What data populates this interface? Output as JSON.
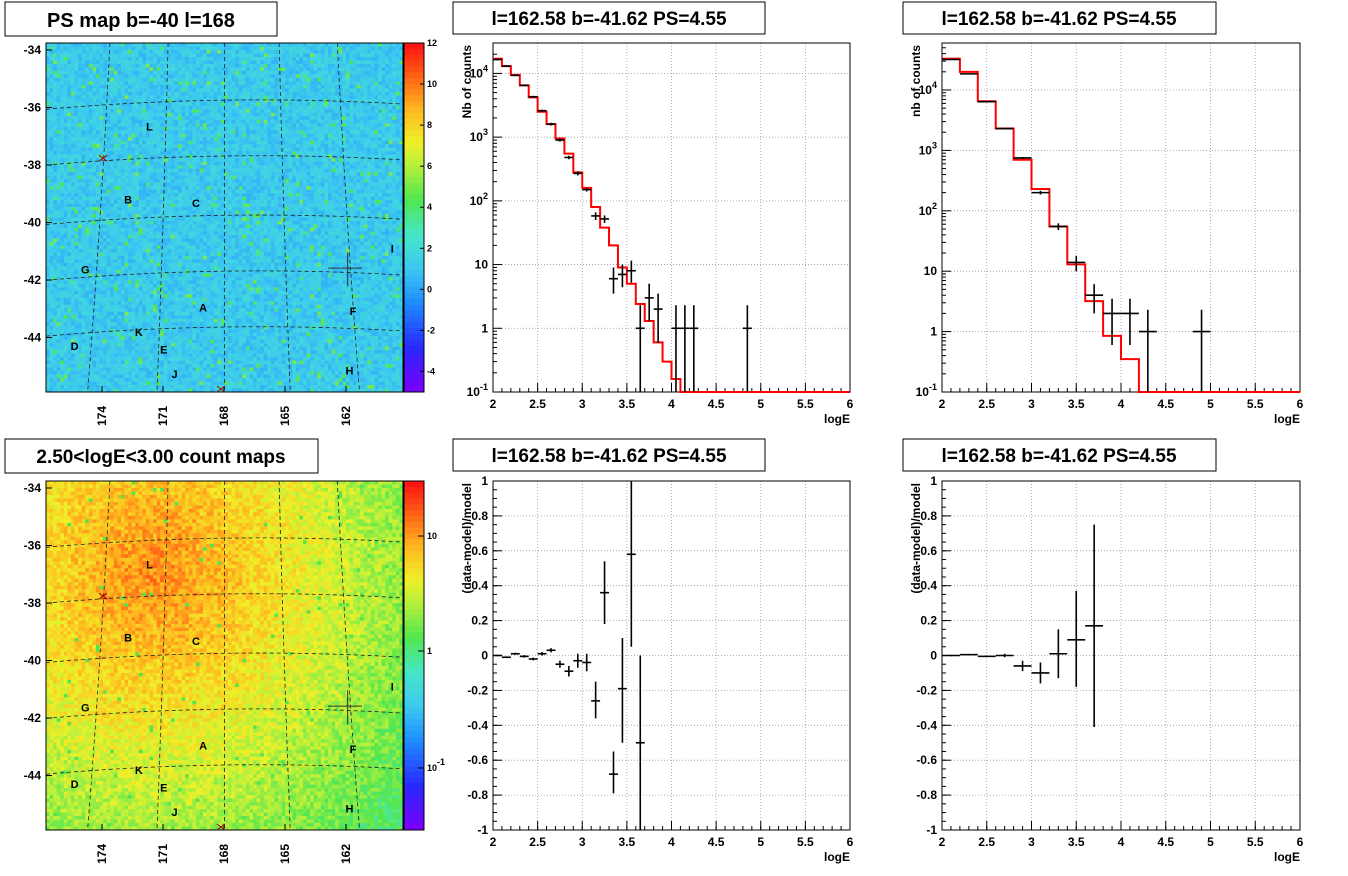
{
  "chart_data": [
    {
      "type": "heatmap",
      "title": "PS map b=-40 l=168",
      "y_ticks": [
        "-34",
        "-36",
        "-38",
        "-40",
        "-42",
        "-44"
      ],
      "x_ticks": [
        "174",
        "171",
        "168",
        "165",
        "162"
      ],
      "colorbar_ticks": [
        "12",
        "10",
        "8",
        "6",
        "4",
        "2",
        "0",
        "-2",
        "-4"
      ],
      "colorbar_range": [
        -5,
        12
      ],
      "sources": [
        "L",
        "B",
        "C",
        "G",
        "I",
        "A",
        "F",
        "K",
        "D",
        "E",
        "H",
        "J"
      ],
      "colormap_base": "#3ec9f0"
    },
    {
      "type": "line",
      "title": "l=162.58 b=-41.62 PS=4.55",
      "xlabel": "logE",
      "ylabel": "Nb of counts",
      "xlim": [
        2,
        6
      ],
      "ylim": [
        0.1,
        30000
      ],
      "yscale": "log",
      "x_ticks": [
        "2",
        "2.5",
        "3",
        "3.5",
        "4",
        "4.5",
        "5",
        "5.5",
        "6"
      ],
      "y_ticks": [
        "10^{-1}",
        "1",
        "10",
        "10^{2}",
        "10^{3}",
        "10^{4}"
      ],
      "model_color": "#ff0000",
      "model_edges": [
        2.0,
        2.1,
        2.2,
        2.3,
        2.4,
        2.5,
        2.6,
        2.7,
        2.8,
        2.9,
        3.0,
        3.1,
        3.2,
        3.3,
        3.4,
        3.5,
        3.6,
        3.7,
        3.8,
        3.9,
        4.0,
        4.1,
        4.2,
        4.3,
        6.0
      ],
      "model_values": [
        17000,
        13000,
        9500,
        6500,
        4200,
        2500,
        1600,
        950,
        550,
        280,
        160,
        80,
        38,
        20,
        9,
        5,
        2.4,
        1.3,
        0.6,
        0.3,
        0.16,
        0.1,
        0.06,
        0.05
      ],
      "data": [
        {
          "x": 2.05,
          "y": 16500,
          "ylo": 16000,
          "yhi": 17000
        },
        {
          "x": 2.15,
          "y": 13000,
          "ylo": 12700,
          "yhi": 13300
        },
        {
          "x": 2.25,
          "y": 9300,
          "ylo": 9100,
          "yhi": 9500
        },
        {
          "x": 2.35,
          "y": 6500,
          "ylo": 6300,
          "yhi": 6700
        },
        {
          "x": 2.45,
          "y": 4300,
          "ylo": 4150,
          "yhi": 4450
        },
        {
          "x": 2.55,
          "y": 2600,
          "ylo": 2500,
          "yhi": 2700
        },
        {
          "x": 2.65,
          "y": 1600,
          "ylo": 1520,
          "yhi": 1680
        },
        {
          "x": 2.75,
          "y": 900,
          "ylo": 850,
          "yhi": 950
        },
        {
          "x": 2.85,
          "y": 480,
          "ylo": 450,
          "yhi": 510
        },
        {
          "x": 2.95,
          "y": 270,
          "ylo": 250,
          "yhi": 290
        },
        {
          "x": 3.05,
          "y": 150,
          "ylo": 140,
          "yhi": 160
        },
        {
          "x": 3.15,
          "y": 58,
          "ylo": 50,
          "yhi": 66
        },
        {
          "x": 3.25,
          "y": 52,
          "ylo": 45,
          "yhi": 59
        },
        {
          "x": 3.35,
          "y": 6,
          "ylo": 3.5,
          "yhi": 9
        },
        {
          "x": 3.45,
          "y": 7,
          "ylo": 4.4,
          "yhi": 10
        },
        {
          "x": 3.55,
          "y": 8,
          "ylo": 5.2,
          "yhi": 11.5
        },
        {
          "x": 3.65,
          "y": 1,
          "ylo": 0.1,
          "yhi": 2.3
        },
        {
          "x": 3.75,
          "y": 3,
          "ylo": 1.3,
          "yhi": 5
        },
        {
          "x": 3.85,
          "y": 2,
          "ylo": 0.6,
          "yhi": 3.5
        },
        {
          "x": 4.05,
          "y": 1,
          "ylo": 0.1,
          "yhi": 2.3
        },
        {
          "x": 4.15,
          "y": 1,
          "ylo": 0.1,
          "yhi": 2.3
        },
        {
          "x": 4.25,
          "y": 1,
          "ylo": 0.1,
          "yhi": 2.3
        },
        {
          "x": 4.85,
          "y": 1,
          "ylo": 0.1,
          "yhi": 2.3
        }
      ]
    },
    {
      "type": "line",
      "title": "l=162.58 b=-41.62 PS=4.55",
      "xlabel": "logE",
      "ylabel": "nb of counts",
      "xlim": [
        2,
        6
      ],
      "ylim": [
        0.1,
        60000
      ],
      "yscale": "log",
      "x_ticks": [
        "2",
        "2.5",
        "3",
        "3.5",
        "4",
        "4.5",
        "5",
        "5.5",
        "6"
      ],
      "y_ticks": [
        "10^{-1}",
        "1",
        "10",
        "10^{2}",
        "10^{3}",
        "10^{4}"
      ],
      "model_color": "#ff0000",
      "model_edges": [
        2.0,
        2.2,
        2.4,
        2.6,
        2.8,
        3.0,
        3.2,
        3.4,
        3.6,
        3.8,
        4.0,
        4.2,
        6.0
      ],
      "model_values": [
        33000,
        20000,
        6500,
        2300,
        700,
        230,
        55,
        13,
        3.2,
        0.85,
        0.35,
        0.1
      ],
      "data": [
        {
          "x": 2.1,
          "y": 32000,
          "ylo": 31500,
          "yhi": 32500
        },
        {
          "x": 2.3,
          "y": 18500,
          "ylo": 18200,
          "yhi": 18800
        },
        {
          "x": 2.5,
          "y": 6400,
          "ylo": 6300,
          "yhi": 6500
        },
        {
          "x": 2.7,
          "y": 2300,
          "ylo": 2250,
          "yhi": 2350
        },
        {
          "x": 2.9,
          "y": 750,
          "ylo": 720,
          "yhi": 780
        },
        {
          "x": 3.1,
          "y": 200,
          "ylo": 186,
          "yhi": 214
        },
        {
          "x": 3.3,
          "y": 55,
          "ylo": 48,
          "yhi": 62
        },
        {
          "x": 3.5,
          "y": 14,
          "ylo": 10,
          "yhi": 18
        },
        {
          "x": 3.7,
          "y": 4,
          "ylo": 2,
          "yhi": 6.1
        },
        {
          "x": 3.9,
          "y": 2,
          "ylo": 0.6,
          "yhi": 3.5
        },
        {
          "x": 4.1,
          "y": 2,
          "ylo": 0.6,
          "yhi": 3.5
        },
        {
          "x": 4.3,
          "y": 1,
          "ylo": 0.1,
          "yhi": 2.3
        },
        {
          "x": 4.9,
          "y": 1,
          "ylo": 0.1,
          "yhi": 2.3
        }
      ]
    },
    {
      "type": "heatmap",
      "title": "2.50<logE<3.00 count maps",
      "y_ticks": [
        "-34",
        "-36",
        "-38",
        "-40",
        "-42",
        "-44"
      ],
      "x_ticks": [
        "174",
        "171",
        "168",
        "165",
        "162"
      ],
      "colorbar_ticks": [
        "10",
        "1",
        "10^{-1}"
      ],
      "colorbar_scale": "log",
      "sources": [
        "L",
        "B",
        "C",
        "G",
        "I",
        "A",
        "F",
        "K",
        "D",
        "E",
        "H",
        "J"
      ]
    },
    {
      "type": "scatter",
      "title": "l=162.58 b=-41.62 PS=4.55",
      "xlabel": "logE",
      "ylabel": "(data-model)/model",
      "xlim": [
        2,
        6
      ],
      "ylim": [
        -1,
        1
      ],
      "x_ticks": [
        "2",
        "2.5",
        "3",
        "3.5",
        "4",
        "4.5",
        "5",
        "5.5",
        "6"
      ],
      "y_ticks": [
        "-1",
        "-0.8",
        "-0.6",
        "-0.4",
        "-0.2",
        "0",
        "0.2",
        "0.4",
        "0.6",
        "0.8",
        "1"
      ],
      "data": [
        {
          "x": 2.05,
          "y": 0.0,
          "ylo": -0.004,
          "yhi": 0.004
        },
        {
          "x": 2.15,
          "y": -0.01,
          "ylo": -0.015,
          "yhi": -0.005
        },
        {
          "x": 2.25,
          "y": 0.01,
          "ylo": 0.004,
          "yhi": 0.016
        },
        {
          "x": 2.35,
          "y": -0.005,
          "ylo": -0.012,
          "yhi": 0.002
        },
        {
          "x": 2.45,
          "y": -0.02,
          "ylo": -0.028,
          "yhi": -0.012
        },
        {
          "x": 2.55,
          "y": 0.01,
          "ylo": 0.0,
          "yhi": 0.02
        },
        {
          "x": 2.65,
          "y": 0.03,
          "ylo": 0.018,
          "yhi": 0.042
        },
        {
          "x": 2.75,
          "y": -0.05,
          "ylo": -0.07,
          "yhi": -0.03
        },
        {
          "x": 2.85,
          "y": -0.09,
          "ylo": -0.12,
          "yhi": -0.06
        },
        {
          "x": 2.95,
          "y": -0.03,
          "ylo": -0.07,
          "yhi": 0.01
        },
        {
          "x": 3.05,
          "y": -0.04,
          "ylo": -0.09,
          "yhi": 0.01
        },
        {
          "x": 3.15,
          "y": -0.26,
          "ylo": -0.36,
          "yhi": -0.15
        },
        {
          "x": 3.25,
          "y": 0.36,
          "ylo": 0.18,
          "yhi": 0.54
        },
        {
          "x": 3.35,
          "y": -0.68,
          "ylo": -0.79,
          "yhi": -0.55
        },
        {
          "x": 3.45,
          "y": -0.19,
          "ylo": -0.5,
          "yhi": 0.1
        },
        {
          "x": 3.55,
          "y": 0.58,
          "ylo": 0.05,
          "yhi": 1.0
        },
        {
          "x": 3.65,
          "y": -0.5,
          "ylo": -1.0,
          "yhi": 0.0
        }
      ]
    },
    {
      "type": "scatter",
      "title": "l=162.58 b=-41.62 PS=4.55",
      "xlabel": "logE",
      "ylabel": "(data-model)/model",
      "xlim": [
        2,
        6
      ],
      "ylim": [
        -1,
        1
      ],
      "x_ticks": [
        "2",
        "2.5",
        "3",
        "3.5",
        "4",
        "4.5",
        "5",
        "5.5",
        "6"
      ],
      "y_ticks": [
        "-1",
        "-0.8",
        "-0.6",
        "-0.4",
        "-0.2",
        "0",
        "0.2",
        "0.4",
        "0.6",
        "0.8",
        "1"
      ],
      "data": [
        {
          "x": 2.1,
          "y": 0.0,
          "ylo": -0.004,
          "yhi": 0.004
        },
        {
          "x": 2.3,
          "y": 0.005,
          "ylo": 0.001,
          "yhi": 0.009
        },
        {
          "x": 2.5,
          "y": -0.005,
          "ylo": -0.009,
          "yhi": -0.001
        },
        {
          "x": 2.7,
          "y": 0.0,
          "ylo": -0.01,
          "yhi": 0.01
        },
        {
          "x": 2.9,
          "y": -0.06,
          "ylo": -0.09,
          "yhi": -0.03
        },
        {
          "x": 3.1,
          "y": -0.1,
          "ylo": -0.16,
          "yhi": -0.04
        },
        {
          "x": 3.3,
          "y": 0.01,
          "ylo": -0.13,
          "yhi": 0.15
        },
        {
          "x": 3.5,
          "y": 0.09,
          "ylo": -0.18,
          "yhi": 0.37
        },
        {
          "x": 3.7,
          "y": 0.17,
          "ylo": -0.41,
          "yhi": 0.75
        }
      ]
    }
  ]
}
